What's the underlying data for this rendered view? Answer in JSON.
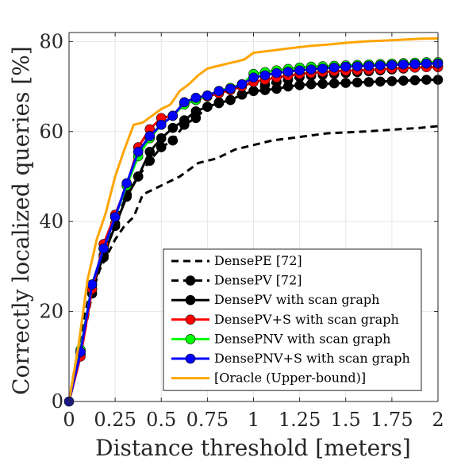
{
  "chart_data": {
    "type": "line",
    "xlabel": "Distance threshold [meters]",
    "ylabel": "Correctly localized queries [%]",
    "xlim": [
      0,
      2
    ],
    "ylim": [
      0,
      82
    ],
    "xticks": [
      0,
      0.25,
      0.5,
      0.75,
      1,
      1.25,
      1.5,
      1.75,
      2
    ],
    "xtick_labels": [
      "0",
      "0.25",
      "0.5",
      "0.75",
      "1",
      "1.25",
      "1.5",
      "1.75",
      "2"
    ],
    "yticks": [
      0,
      20,
      40,
      60,
      80
    ],
    "ytick_labels": [
      "0",
      "20",
      "40",
      "60",
      "80"
    ],
    "grid": true,
    "legend_position": "bottom-right",
    "series": [
      {
        "name": "DensePE [72]",
        "color": "#000000",
        "dash": "dashed",
        "marker": "none",
        "x": [
          0,
          0.05,
          0.1,
          0.15,
          0.2,
          0.25,
          0.3,
          0.35,
          0.4,
          0.45,
          0.5,
          0.6,
          0.7,
          0.75,
          0.8,
          0.85,
          0.9,
          1,
          1.1,
          1.25,
          1.4,
          1.5,
          1.6,
          1.75,
          1.9,
          2
        ],
        "y": [
          0,
          12,
          22,
          28,
          32,
          36,
          39,
          41,
          46,
          47,
          48,
          50,
          53,
          53.5,
          54,
          55,
          56,
          57,
          58,
          58.8,
          59.6,
          59.8,
          60,
          60.4,
          60.8,
          61.2
        ]
      },
      {
        "name": "DensePV [72]",
        "color": "#000000",
        "dash": "dashed",
        "marker": "circle",
        "x": [
          0,
          0.0625,
          0.125,
          0.1875,
          0.25,
          0.3125,
          0.375,
          0.4375,
          0.5,
          0.5625,
          0.625,
          0.6875,
          0.75,
          0.8125,
          0.875,
          0.9375,
          1,
          1.0625,
          1.125,
          1.1875,
          1.25,
          1.3125,
          1.375,
          1.4375,
          1.5,
          1.5625,
          1.625,
          1.6875,
          1.75,
          1.8125,
          1.875,
          1.9375,
          2
        ],
        "y": [
          0,
          10.5,
          24,
          32,
          39.5,
          46,
          50,
          53.5,
          56.5,
          58,
          61.5,
          63,
          65.5,
          66.5,
          67,
          68.2,
          69,
          70.4,
          71,
          71.5,
          72.1,
          72.4,
          72.6,
          72.8,
          73,
          73.2,
          73.4,
          73.6,
          73.8,
          74,
          74.2,
          74.4,
          74.5
        ]
      },
      {
        "name": "DensePV with scan graph",
        "color": "#000000",
        "dash": "solid",
        "marker": "circle",
        "x": [
          0,
          0.0625,
          0.125,
          0.1875,
          0.25,
          0.3125,
          0.375,
          0.4375,
          0.5,
          0.5625,
          0.625,
          0.6875,
          0.75,
          0.8125,
          0.875,
          0.9375,
          1,
          1.0625,
          1.125,
          1.1875,
          1.25,
          1.3125,
          1.375,
          1.4375,
          1.5,
          1.5625,
          1.625,
          1.6875,
          1.75,
          1.8125,
          1.875,
          1.9375,
          2
        ],
        "y": [
          0,
          11,
          25,
          32.5,
          39,
          45.5,
          50,
          55.5,
          58.5,
          60.8,
          62.5,
          64.5,
          65.5,
          66.3,
          67,
          68.2,
          69,
          69.2,
          69.5,
          70,
          70.3,
          70.5,
          70.6,
          70.7,
          70.8,
          70.9,
          71,
          71.1,
          71.2,
          71.3,
          71.4,
          71.5,
          71.5
        ]
      },
      {
        "name": "DensePV+S with scan graph",
        "color": "#ff0000",
        "dash": "solid",
        "marker": "circle",
        "x": [
          0,
          0.0625,
          0.125,
          0.1875,
          0.25,
          0.3125,
          0.375,
          0.4375,
          0.5,
          0.5625,
          0.625,
          0.6875,
          0.75,
          0.8125,
          0.875,
          0.9375,
          1,
          1.0625,
          1.125,
          1.1875,
          1.25,
          1.3125,
          1.375,
          1.4375,
          1.5,
          1.5625,
          1.625,
          1.6875,
          1.75,
          1.8125,
          1.875,
          1.9375,
          2
        ],
        "y": [
          0,
          10,
          25,
          35,
          41.5,
          48,
          56.5,
          60.5,
          63,
          63.5,
          66.5,
          67,
          67.8,
          68.5,
          69.2,
          70,
          71,
          71.5,
          72,
          72.4,
          72.8,
          73,
          73.2,
          73.4,
          73.5,
          73.6,
          73.7,
          73.8,
          74,
          74.1,
          74.2,
          74.3,
          74.3
        ]
      },
      {
        "name": "DensePNV with scan graph",
        "color": "#00ff00",
        "dash": "solid",
        "marker": "circle",
        "x": [
          0,
          0.0625,
          0.125,
          0.1875,
          0.25,
          0.3125,
          0.375,
          0.4375,
          0.5,
          0.5625,
          0.625,
          0.6875,
          0.75,
          0.8125,
          0.875,
          0.9375,
          1,
          1.0625,
          1.125,
          1.1875,
          1.25,
          1.3125,
          1.375,
          1.4375,
          1.5,
          1.5625,
          1.625,
          1.6875,
          1.75,
          1.8125,
          1.875,
          1.9375,
          2
        ],
        "y": [
          0,
          11.5,
          26,
          34,
          41,
          48,
          54.5,
          58.5,
          61.5,
          63.5,
          66,
          67,
          68,
          69,
          69.7,
          70.5,
          72.8,
          73.2,
          73.6,
          73.9,
          74.2,
          74.4,
          74.5,
          74.6,
          74.7,
          74.8,
          74.9,
          75,
          75.1,
          75.2,
          75.3,
          75.4,
          75.4
        ]
      },
      {
        "name": "DensePNV+S with scan graph",
        "color": "#0000ff",
        "dash": "solid",
        "marker": "circle",
        "x": [
          0,
          0.0625,
          0.125,
          0.1875,
          0.25,
          0.3125,
          0.375,
          0.4375,
          0.5,
          0.5625,
          0.625,
          0.6875,
          0.75,
          0.8125,
          0.875,
          0.9375,
          1,
          1.0625,
          1.125,
          1.1875,
          1.25,
          1.3125,
          1.375,
          1.4375,
          1.5,
          1.5625,
          1.625,
          1.6875,
          1.75,
          1.8125,
          1.875,
          1.9375,
          2
        ],
        "y": [
          0,
          11,
          26,
          34,
          41,
          48.5,
          55.5,
          59,
          61.5,
          63.5,
          66.5,
          67.5,
          68,
          69,
          69.5,
          70.5,
          72,
          72.5,
          73,
          73.3,
          73.6,
          73.8,
          74,
          74.2,
          74.4,
          74.5,
          74.6,
          74.7,
          74.8,
          74.9,
          75,
          75.1,
          75.1
        ]
      },
      {
        "name": "[Oracle (Upper-bound)]",
        "color": "#ffa500",
        "dash": "solid",
        "marker": "none",
        "x": [
          0,
          0.05,
          0.1,
          0.15,
          0.2,
          0.25,
          0.3,
          0.35,
          0.4,
          0.45,
          0.5,
          0.55,
          0.6,
          0.65,
          0.7,
          0.75,
          0.8,
          0.85,
          0.9,
          0.95,
          1,
          1.1,
          1.2,
          1.3,
          1.4,
          1.5,
          1.6,
          1.7,
          1.8,
          1.9,
          2
        ],
        "y": [
          0,
          12,
          27,
          36,
          42,
          50,
          56,
          61.5,
          62,
          63.5,
          65,
          66,
          69,
          70.5,
          72.5,
          74,
          74.5,
          75,
          75.5,
          76,
          77.5,
          78,
          78.5,
          79,
          79.3,
          79.7,
          80,
          80.2,
          80.4,
          80.6,
          80.7
        ]
      }
    ]
  }
}
